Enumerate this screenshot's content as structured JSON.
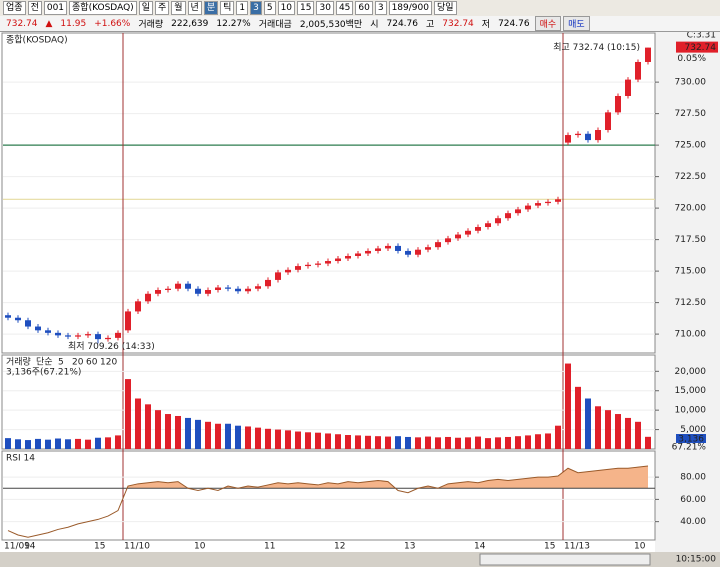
{
  "toolbar": {
    "row1": [
      "업종",
      "전",
      "001",
      "종합(KOSDAQ)",
      "일",
      "주",
      "월",
      "년",
      "분",
      "틱",
      "1",
      "3",
      "5",
      "10",
      "15",
      "30",
      "45",
      "60",
      "3",
      "189/900",
      "당일"
    ],
    "row2": [
      "732.74",
      "▲",
      "11.95",
      "+1.66%",
      "거래량",
      "222,639",
      "12.27%",
      "거래대금",
      "2,005,530백만",
      "시",
      "724.76",
      "고",
      "732.74",
      "저",
      "724.76",
      "매수",
      "매도"
    ],
    "clock": "10:15:00"
  },
  "chart_data": [
    {
      "type": "candlestick",
      "title": "종합(KOSDAQ)",
      "c_label": "C:3.31",
      "last_price_label": "732.74",
      "last_change": "0.05%",
      "up_color": "#e0202a",
      "down_color": "#1f4fbf",
      "categories": [
        "11/09",
        null,
        "14",
        null,
        null,
        null,
        null,
        null,
        null,
        "15",
        null,
        null,
        "11/10",
        null,
        null,
        null,
        null,
        null,
        null,
        "10",
        null,
        null,
        null,
        null,
        null,
        null,
        "11",
        null,
        null,
        null,
        null,
        null,
        null,
        "12",
        null,
        null,
        null,
        null,
        null,
        null,
        "13",
        null,
        null,
        null,
        null,
        null,
        null,
        "14",
        null,
        null,
        null,
        null,
        null,
        null,
        "15",
        null,
        "11/13",
        null,
        null,
        null,
        null,
        null,
        null,
        "10",
        null
      ],
      "open": [
        711.5,
        711.3,
        711.1,
        710.6,
        710.3,
        710.1,
        709.9,
        709.8,
        709.9,
        710.0,
        709.6,
        709.7,
        710.3,
        711.8,
        712.6,
        713.2,
        713.5,
        713.6,
        714.0,
        713.6,
        713.2,
        713.5,
        713.7,
        713.6,
        713.4,
        713.6,
        713.8,
        714.3,
        714.9,
        715.1,
        715.4,
        715.5,
        715.6,
        715.8,
        716.0,
        716.2,
        716.4,
        716.6,
        716.8,
        717.0,
        716.6,
        716.3,
        716.7,
        716.9,
        717.3,
        717.6,
        717.9,
        718.2,
        718.5,
        718.8,
        719.2,
        719.6,
        719.9,
        720.2,
        720.4,
        720.5,
        725.2,
        725.8,
        725.9,
        725.4,
        726.2,
        727.6,
        728.9,
        730.2,
        731.6
      ],
      "high": [
        711.7,
        711.5,
        711.3,
        710.8,
        710.5,
        710.3,
        710.1,
        710.1,
        710.2,
        710.2,
        709.9,
        710.3,
        712.0,
        712.8,
        713.4,
        713.7,
        713.8,
        714.2,
        714.2,
        713.8,
        713.7,
        713.9,
        713.9,
        713.8,
        713.8,
        714.0,
        714.5,
        715.1,
        715.3,
        715.6,
        715.7,
        715.8,
        716.0,
        716.2,
        716.4,
        716.6,
        716.8,
        717.0,
        717.2,
        717.2,
        716.8,
        716.9,
        717.1,
        717.5,
        717.8,
        718.1,
        718.4,
        718.7,
        719.0,
        719.4,
        719.8,
        720.1,
        720.4,
        720.6,
        720.7,
        720.9,
        726.0,
        726.1,
        726.1,
        726.4,
        727.8,
        729.1,
        730.4,
        731.8,
        732.74
      ],
      "low": [
        711.1,
        710.9,
        710.4,
        710.1,
        709.9,
        709.7,
        709.6,
        709.6,
        709.7,
        709.26,
        709.4,
        709.5,
        710.1,
        711.6,
        712.4,
        713.0,
        713.3,
        713.4,
        713.4,
        713.0,
        713.0,
        713.3,
        713.4,
        713.2,
        713.2,
        713.4,
        713.6,
        714.1,
        714.7,
        714.9,
        715.2,
        715.3,
        715.4,
        715.6,
        715.8,
        716.0,
        716.2,
        716.4,
        716.6,
        716.4,
        716.1,
        716.1,
        716.5,
        716.7,
        717.1,
        717.4,
        717.7,
        718.0,
        718.3,
        718.6,
        719.0,
        719.4,
        719.7,
        720.0,
        720.2,
        720.3,
        725.0,
        725.6,
        725.2,
        725.2,
        726.0,
        727.4,
        728.7,
        730.0,
        731.4
      ],
      "close": [
        711.3,
        711.1,
        710.6,
        710.3,
        710.1,
        709.9,
        709.8,
        709.9,
        710.0,
        709.6,
        709.7,
        710.1,
        711.8,
        712.6,
        713.2,
        713.5,
        713.6,
        714.0,
        713.6,
        713.2,
        713.5,
        713.7,
        713.6,
        713.4,
        713.6,
        713.8,
        714.3,
        714.9,
        715.1,
        715.4,
        715.5,
        715.6,
        715.8,
        716.0,
        716.2,
        716.4,
        716.6,
        716.8,
        717.0,
        716.6,
        716.3,
        716.7,
        716.9,
        717.3,
        717.6,
        717.9,
        718.2,
        718.5,
        718.8,
        719.2,
        719.6,
        719.9,
        720.2,
        720.4,
        720.5,
        720.7,
        725.8,
        725.9,
        725.4,
        726.2,
        727.6,
        728.9,
        730.2,
        731.6,
        732.74
      ],
      "ylim": [
        708.5,
        733.9
      ],
      "yticks": [
        {
          "value": 710,
          "label": "710.00"
        },
        {
          "value": 712.5,
          "label": "712.50"
        },
        {
          "value": 715,
          "label": "715.00"
        },
        {
          "value": 717.5,
          "label": "717.50"
        },
        {
          "value": 720,
          "label": "720.00"
        },
        {
          "value": 722.5,
          "label": "722.50"
        },
        {
          "value": 725,
          "label": "725.00"
        },
        {
          "value": 727.5,
          "label": "727.50"
        },
        {
          "value": 730,
          "label": "730.00"
        }
      ],
      "hlines": [
        {
          "value": 725,
          "color": "#2e7d4f"
        },
        {
          "value": 720.7,
          "color": "#e6dca0"
        }
      ],
      "annotations": [
        "최고 732.74 (10:15)",
        "최저 709.26 (14:33)"
      ]
    },
    {
      "type": "bar",
      "title": "거래량",
      "method": "단순",
      "subtitle": "3,136주(67.21%)",
      "last_label": "3,136",
      "last_pct": "67.21%",
      "ma_legend": [
        {
          "label": "5",
          "color": "#d02020"
        },
        {
          "label": "20",
          "color": "#d0a020"
        },
        {
          "label": "60",
          "color": "#208020"
        },
        {
          "label": "120",
          "color": "#606060"
        }
      ],
      "values": [
        2800,
        2500,
        2300,
        2600,
        2400,
        2700,
        2500,
        2600,
        2400,
        2900,
        3000,
        3500,
        18000,
        13000,
        11500,
        10000,
        9000,
        8500,
        8000,
        7500,
        7000,
        6500,
        6500,
        6000,
        5800,
        5500,
        5200,
        5000,
        4800,
        4500,
        4300,
        4200,
        4000,
        3800,
        3600,
        3500,
        3400,
        3300,
        3200,
        3300,
        3100,
        3000,
        3200,
        3000,
        3100,
        2900,
        3000,
        3200,
        2800,
        3000,
        3100,
        3300,
        3500,
        3800,
        4000,
        6000,
        22000,
        16000,
        13000,
        11000,
        10000,
        9000,
        8000,
        7000,
        3136
      ],
      "ylim": [
        0,
        24200
      ],
      "yticks": [
        {
          "value": 5000,
          "label": "5,000"
        },
        {
          "value": 10000,
          "label": "10,000"
        },
        {
          "value": 15000,
          "label": "15,000"
        },
        {
          "value": 20000,
          "label": "20,000"
        }
      ]
    },
    {
      "type": "line",
      "title": "RSI 14",
      "color": "#9a5a2a",
      "fill_color": "#f5b48a",
      "ref_line": 70,
      "values": [
        32,
        28,
        26,
        28,
        30,
        33,
        35,
        38,
        40,
        42,
        45,
        50,
        72,
        74,
        75,
        76,
        75,
        76,
        70,
        68,
        70,
        68,
        72,
        70,
        72,
        71,
        73,
        75,
        74,
        75,
        74,
        73,
        75,
        74,
        76,
        75,
        76,
        77,
        76,
        68,
        66,
        70,
        72,
        70,
        74,
        75,
        76,
        75,
        77,
        78,
        77,
        78,
        79,
        80,
        80,
        81,
        88,
        84,
        85,
        86,
        87,
        88,
        88,
        89,
        90
      ],
      "ylim": [
        23.5,
        103.5
      ],
      "yticks": [
        {
          "value": 40,
          "label": "40.00"
        },
        {
          "value": 60,
          "label": "60.00"
        },
        {
          "value": 80,
          "label": "80.00"
        }
      ]
    }
  ]
}
